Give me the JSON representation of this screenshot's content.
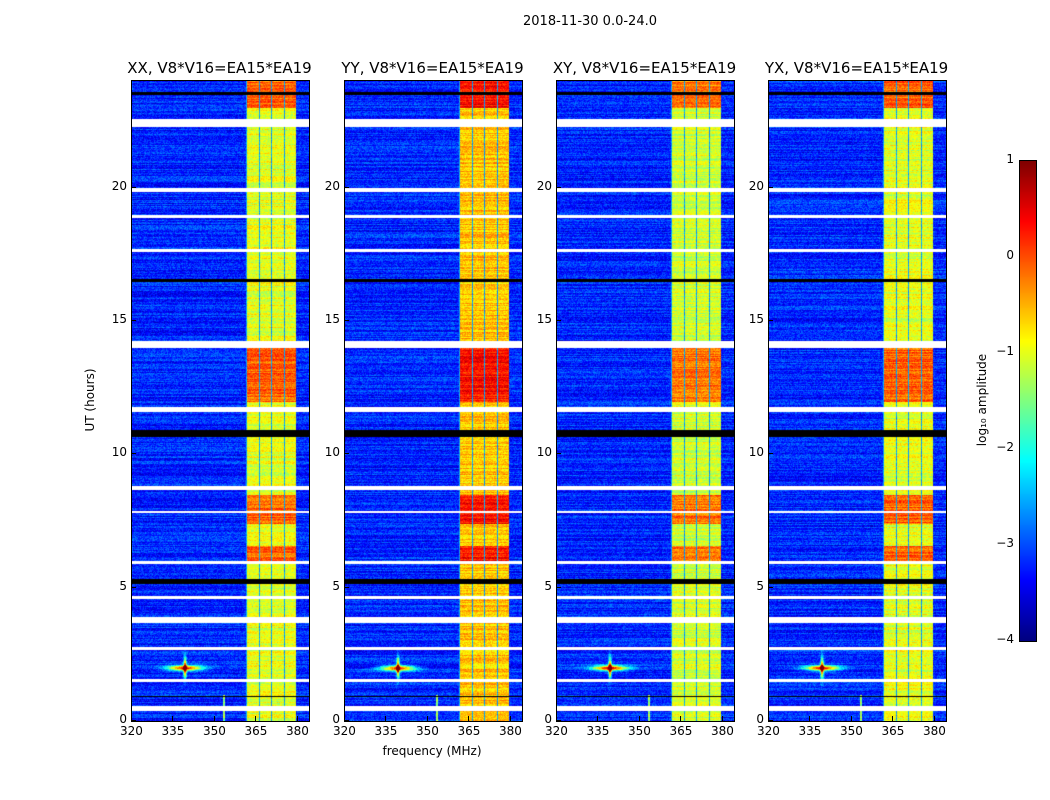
{
  "figure": {
    "suptitle": "2018-11-30 0.0-24.0"
  },
  "chart_data": {
    "type": "heatmap",
    "panels": [
      {
        "title": "XX, V8*V16=EA15*EA19",
        "band_level": -1.0
      },
      {
        "title": "YY, V8*V16=EA15*EA19",
        "band_level": -0.6
      },
      {
        "title": "XY, V8*V16=EA15*EA19",
        "band_level": -1.1
      },
      {
        "title": "YX, V8*V16=EA15*EA19",
        "band_level": -1.0
      }
    ],
    "xlabel": "frequency (MHz)",
    "ylabel": "UT (hours)",
    "xlim": [
      320,
      384
    ],
    "ylim": [
      0,
      24
    ],
    "xticks": [
      "320",
      "335",
      "350",
      "365",
      "380"
    ],
    "xtick_values": [
      320,
      335,
      350,
      365,
      380
    ],
    "yticks": [
      "0",
      "5",
      "10",
      "15",
      "20"
    ],
    "ytick_values": [
      0,
      5,
      10,
      15,
      20
    ],
    "background_level": -3.2,
    "rfi_band_mhz": [
      361,
      379
    ],
    "flagged_hours": [
      [
        22.3,
        22.6
      ],
      [
        19.85,
        20.0
      ],
      [
        18.9,
        19.0
      ],
      [
        17.6,
        17.7
      ],
      [
        14.0,
        14.25
      ],
      [
        11.6,
        11.8
      ],
      [
        8.7,
        8.85
      ],
      [
        7.8,
        7.9
      ],
      [
        5.9,
        6.0
      ],
      [
        4.6,
        4.7
      ],
      [
        3.7,
        3.9
      ],
      [
        2.7,
        2.8
      ],
      [
        1.5,
        1.6
      ],
      [
        0.4,
        0.6
      ]
    ],
    "dropout_hours": [
      [
        23.5,
        23.6
      ],
      [
        10.65,
        10.95
      ],
      [
        5.15,
        5.35
      ],
      [
        16.5,
        16.6
      ],
      [
        0.9,
        0.95
      ]
    ],
    "bright_hours": [
      [
        23.0,
        24.0
      ],
      [
        12.0,
        14.0
      ],
      [
        7.4,
        8.5
      ],
      [
        6.0,
        6.6
      ]
    ],
    "source": {
      "freq_mhz": 339,
      "hour": 2.0
    },
    "colorbar": {
      "label": "log₁₀ amplitude",
      "ticks": [
        "1",
        "0",
        "−1",
        "−2",
        "−3",
        "−4"
      ],
      "tick_values": [
        1,
        0,
        -1,
        -2,
        -3,
        -4
      ],
      "range": [
        -4,
        1
      ],
      "colormap": "jet"
    }
  }
}
